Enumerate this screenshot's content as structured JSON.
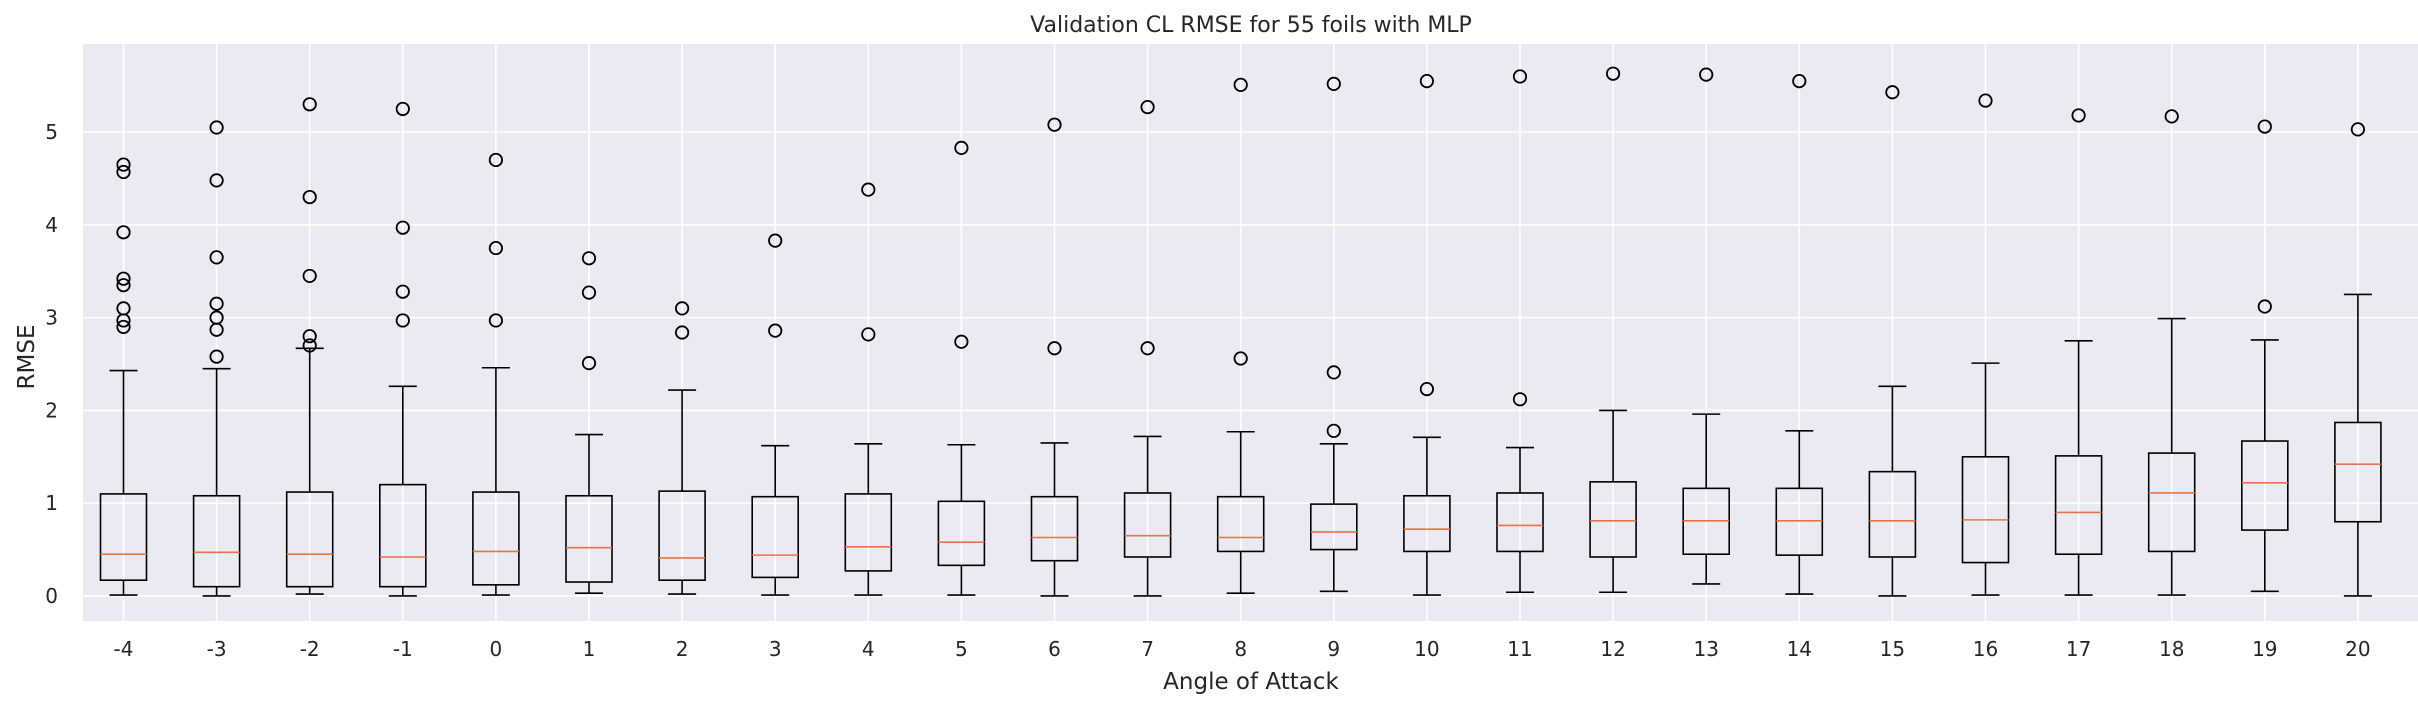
{
  "chart_data": {
    "type": "box",
    "title": "Validation CL RMSE for 55 foils with MLP",
    "xlabel": "Angle of Attack",
    "ylabel": "RMSE",
    "categories": [
      "-4",
      "-3",
      "-2",
      "-1",
      "0",
      "1",
      "2",
      "3",
      "4",
      "5",
      "6",
      "7",
      "8",
      "9",
      "10",
      "11",
      "12",
      "13",
      "14",
      "15",
      "16",
      "17",
      "18",
      "19",
      "20"
    ],
    "ylim": [
      -0.27,
      5.95
    ],
    "yticks": [
      0,
      1,
      2,
      3,
      4,
      5
    ],
    "grid": true,
    "legend": "none",
    "colors": {
      "background": "#eaeaf2",
      "grid": "#ffffff",
      "box": "#000000",
      "median": "#e8734a"
    },
    "boxes": [
      {
        "whislo": 0.01,
        "q1": 0.17,
        "med": 0.45,
        "q3": 1.1,
        "whishi": 2.43,
        "fliers": [
          2.9,
          2.97,
          3.1,
          3.35,
          3.42,
          3.92,
          4.57,
          4.65
        ]
      },
      {
        "whislo": 0.0,
        "q1": 0.1,
        "med": 0.47,
        "q3": 1.08,
        "whishi": 2.45,
        "fliers": [
          2.58,
          2.87,
          3.0,
          3.15,
          3.65,
          4.48,
          5.05
        ]
      },
      {
        "whislo": 0.02,
        "q1": 0.1,
        "med": 0.45,
        "q3": 1.12,
        "whishi": 2.67,
        "fliers": [
          2.7,
          2.8,
          3.45,
          4.3,
          5.3
        ]
      },
      {
        "whislo": 0.0,
        "q1": 0.1,
        "med": 0.42,
        "q3": 1.2,
        "whishi": 2.26,
        "fliers": [
          2.97,
          3.28,
          3.97,
          5.25
        ]
      },
      {
        "whislo": 0.01,
        "q1": 0.12,
        "med": 0.48,
        "q3": 1.12,
        "whishi": 2.46,
        "fliers": [
          2.97,
          3.75,
          4.7
        ]
      },
      {
        "whislo": 0.03,
        "q1": 0.15,
        "med": 0.52,
        "q3": 1.08,
        "whishi": 1.74,
        "fliers": [
          2.51,
          3.27,
          3.64
        ]
      },
      {
        "whislo": 0.02,
        "q1": 0.17,
        "med": 0.41,
        "q3": 1.13,
        "whishi": 2.22,
        "fliers": [
          2.84,
          3.1
        ]
      },
      {
        "whislo": 0.01,
        "q1": 0.2,
        "med": 0.44,
        "q3": 1.07,
        "whishi": 1.62,
        "fliers": [
          2.86,
          3.83
        ]
      },
      {
        "whislo": 0.01,
        "q1": 0.27,
        "med": 0.53,
        "q3": 1.1,
        "whishi": 1.64,
        "fliers": [
          2.82,
          4.38
        ]
      },
      {
        "whislo": 0.01,
        "q1": 0.33,
        "med": 0.58,
        "q3": 1.02,
        "whishi": 1.63,
        "fliers": [
          2.74,
          4.83
        ]
      },
      {
        "whislo": 0.0,
        "q1": 0.38,
        "med": 0.63,
        "q3": 1.07,
        "whishi": 1.65,
        "fliers": [
          2.67,
          5.08
        ]
      },
      {
        "whislo": 0.0,
        "q1": 0.42,
        "med": 0.65,
        "q3": 1.11,
        "whishi": 1.72,
        "fliers": [
          2.67,
          5.27
        ]
      },
      {
        "whislo": 0.03,
        "q1": 0.48,
        "med": 0.63,
        "q3": 1.07,
        "whishi": 1.77,
        "fliers": [
          2.56,
          5.51
        ]
      },
      {
        "whislo": 0.05,
        "q1": 0.5,
        "med": 0.69,
        "q3": 0.99,
        "whishi": 1.64,
        "fliers": [
          1.78,
          2.41,
          5.52
        ]
      },
      {
        "whislo": 0.01,
        "q1": 0.48,
        "med": 0.72,
        "q3": 1.08,
        "whishi": 1.71,
        "fliers": [
          2.23,
          5.55
        ]
      },
      {
        "whislo": 0.04,
        "q1": 0.48,
        "med": 0.76,
        "q3": 1.11,
        "whishi": 1.6,
        "fliers": [
          2.12,
          5.6
        ]
      },
      {
        "whislo": 0.04,
        "q1": 0.42,
        "med": 0.81,
        "q3": 1.23,
        "whishi": 2.0,
        "fliers": [
          5.63
        ]
      },
      {
        "whislo": 0.13,
        "q1": 0.45,
        "med": 0.81,
        "q3": 1.16,
        "whishi": 1.96,
        "fliers": [
          5.62
        ]
      },
      {
        "whislo": 0.02,
        "q1": 0.44,
        "med": 0.81,
        "q3": 1.16,
        "whishi": 1.78,
        "fliers": [
          5.55
        ]
      },
      {
        "whislo": 0.0,
        "q1": 0.42,
        "med": 0.81,
        "q3": 1.34,
        "whishi": 2.26,
        "fliers": [
          5.43
        ]
      },
      {
        "whislo": 0.01,
        "q1": 0.36,
        "med": 0.82,
        "q3": 1.5,
        "whishi": 2.51,
        "fliers": [
          5.34
        ]
      },
      {
        "whislo": 0.01,
        "q1": 0.45,
        "med": 0.9,
        "q3": 1.51,
        "whishi": 2.75,
        "fliers": [
          5.18
        ]
      },
      {
        "whislo": 0.01,
        "q1": 0.48,
        "med": 1.11,
        "q3": 1.54,
        "whishi": 2.99,
        "fliers": [
          5.17
        ]
      },
      {
        "whislo": 0.05,
        "q1": 0.71,
        "med": 1.22,
        "q3": 1.67,
        "whishi": 2.76,
        "fliers": [
          3.12,
          5.06
        ]
      },
      {
        "whislo": 0.0,
        "q1": 0.8,
        "med": 1.42,
        "q3": 1.87,
        "whishi": 3.25,
        "fliers": [
          5.03
        ]
      }
    ]
  }
}
